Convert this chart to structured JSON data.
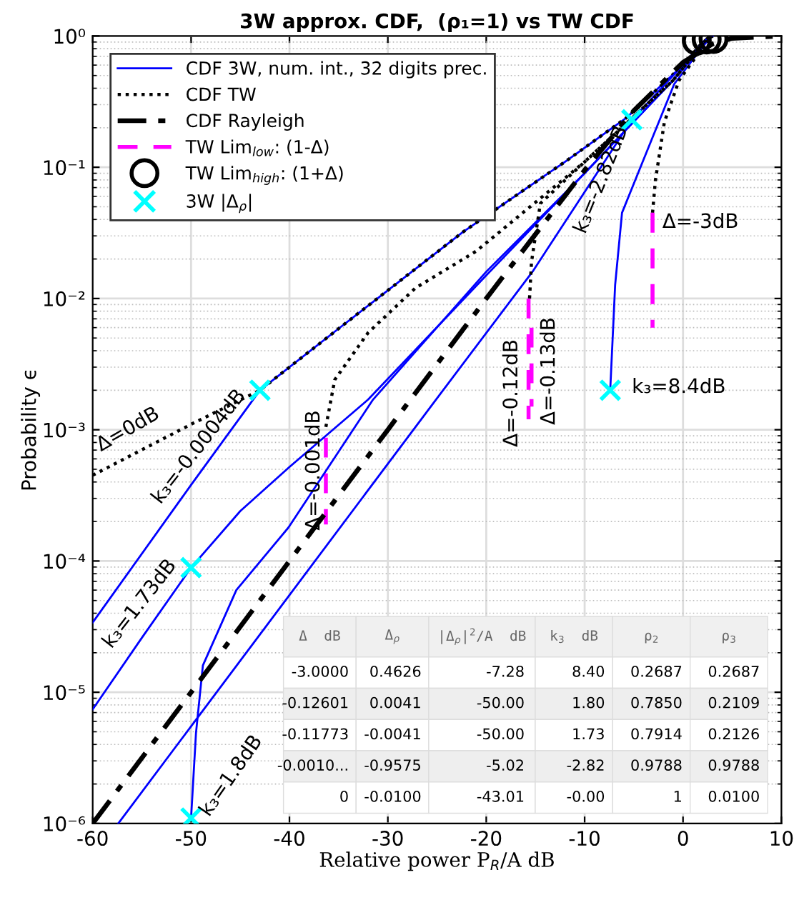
{
  "chart_data": {
    "type": "line",
    "title": "3W approx. CDF,  (ρ₁=1) vs TW CDF",
    "xlabel": "Relative power P$_{R}$/A dB",
    "ylabel": "Probability ϵ",
    "log": "y",
    "xlim": [
      -60,
      10
    ],
    "xticks": [
      -60,
      -50,
      -40,
      -30,
      -20,
      -10,
      0,
      10
    ],
    "ylim": [
      1e-06,
      1
    ],
    "yticks": [
      {
        "value": 1e-06,
        "label": "10⁻⁶"
      },
      {
        "value": 1e-05,
        "label": "10⁻⁵"
      },
      {
        "value": 0.0001,
        "label": "10⁻⁴"
      },
      {
        "value": 0.001,
        "label": "10⁻³"
      },
      {
        "value": 0.01,
        "label": "10⁻²"
      },
      {
        "value": 0.1,
        "label": "10⁻¹"
      },
      {
        "value": 1,
        "label": "10⁰"
      }
    ],
    "grid": true,
    "legend": "top left",
    "series": [
      {
        "name": "CDF 3W, num. int., 32 digits prec.",
        "type": "line",
        "color": "#0000ff",
        "line_style": "solid",
        "marker": "none",
        "x": [
          -60,
          -50,
          -43,
          -35,
          -22.4,
          -12,
          -5.7,
          0,
          2,
          3
        ],
        "values": [
          3.4e-05,
          0.00038,
          0.002,
          0.0059,
          0.032,
          0.11,
          0.24,
          0.6,
          0.9,
          1.0
        ]
      },
      {
        "name": "CDF TW",
        "type": "line",
        "color": "#000000",
        "line_style": "dotted",
        "marker": "none",
        "x": [
          -60,
          -50,
          -43,
          -35,
          -22.4,
          -12,
          -5.7,
          0,
          2,
          3
        ],
        "values": [
          0.00045,
          0.0011,
          0.002,
          0.0059,
          0.032,
          0.11,
          0.24,
          0.6,
          0.9,
          1.0
        ]
      },
      {
        "name": "CDF Rayleigh",
        "type": "line",
        "color": "#000000",
        "line_style": "dashdot",
        "marker": "none",
        "x": [
          -60,
          -50,
          -40,
          -30,
          -20,
          -10,
          -5,
          0,
          3,
          5,
          10
        ],
        "values": [
          1e-06,
          1e-05,
          0.0001,
          0.001,
          0.01,
          0.095,
          0.27,
          0.63,
          0.87,
          0.96,
          1.0
        ]
      },
      {
        "name": "TW Lim$_{low}$: (1-Δ)",
        "type": "line",
        "color": "#ff00ff",
        "line_style": "dashed",
        "marker": "none",
        "x": [
          -36.3,
          -36.3
        ],
        "values": [
          0.00087,
          0.00019
        ]
      },
      {
        "name": "TW Lim$_{high}$: (1+Δ)",
        "type": "scatter",
        "color": "#000000",
        "marker": "circle",
        "x": [
          1.4,
          2.4,
          3.1
        ],
        "values": [
          0.92,
          0.94,
          0.95
        ]
      },
      {
        "name": "3W |Δ$_{ρ}$|",
        "type": "scatter",
        "color": "#00ffff",
        "marker": "cross",
        "x": [
          -43,
          -50,
          -50,
          -5.2,
          -7.4
        ],
        "values": [
          0.002,
          8.9e-05,
          1.1e-06,
          0.23,
          0.002
        ]
      },
      {
        "color": "#0000ff",
        "line_style": "solid",
        "marker": "none",
        "x": [
          -60,
          -55,
          -50,
          -45,
          -40,
          -32,
          -20,
          -10,
          -1,
          2.4,
          3
        ],
        "values": [
          7.4e-06,
          2.6e-05,
          8.9e-05,
          0.00024,
          0.00052,
          0.0017,
          0.015,
          0.09,
          0.46,
          0.95,
          1.0
        ]
      },
      {
        "color": "#0000ff",
        "line_style": "solid",
        "marker": "none",
        "x": [
          -50,
          -49.5,
          -48.8,
          -45.4,
          -40.1,
          -31.5,
          -20,
          -10,
          -1,
          2.4,
          3
        ],
        "values": [
          1.1e-06,
          4.9e-06,
          1.6e-05,
          6e-05,
          0.00018,
          0.0017,
          0.016,
          0.09,
          0.46,
          0.95,
          1.0
        ]
      },
      {
        "color": "#0000ff",
        "line_style": "solid",
        "marker": "none",
        "x": [
          -57.4,
          -50,
          -40,
          -25.1,
          -15.3,
          -5.2,
          0,
          3
        ],
        "values": [
          1e-06,
          5.5e-06,
          5.5e-05,
          0.0017,
          0.016,
          0.23,
          0.6,
          1.0
        ]
      },
      {
        "color": "#0000ff",
        "line_style": "solid",
        "marker": "none",
        "x": [
          -7.4,
          -6.9,
          -6.2,
          -3.3,
          -0.9,
          2,
          2.9
        ],
        "values": [
          0.002,
          0.0127,
          0.045,
          0.155,
          0.43,
          0.83,
          1.0
        ]
      },
      {
        "color": "#000000",
        "line_style": "dotted",
        "marker": "none",
        "x": [
          -36.3,
          -35.4,
          -32,
          -27.2,
          -21,
          -10,
          -1,
          2.4,
          3
        ],
        "values": [
          0.00105,
          0.0024,
          0.0055,
          0.012,
          0.023,
          0.11,
          0.46,
          0.95,
          1.0
        ]
      },
      {
        "color": "#000000",
        "line_style": "dotted",
        "marker": "none",
        "x": [
          -15.6,
          -15.4,
          -14.5,
          -10,
          -1,
          2.4,
          3
        ],
        "values": [
          0.01,
          0.019,
          0.053,
          0.11,
          0.46,
          0.95,
          1.0
        ]
      },
      {
        "color": "#000000",
        "line_style": "dotted",
        "marker": "none",
        "x": [
          -3.1,
          -2.8,
          -1.9,
          -0.4,
          2.4,
          3
        ],
        "values": [
          0.045,
          0.08,
          0.22,
          0.46,
          0.9,
          1.0
        ]
      },
      {
        "color": "#ff00ff",
        "line_style": "dashed",
        "marker": "none",
        "x": [
          -3.1,
          -3.1
        ],
        "values": [
          0.045,
          0.006
        ]
      },
      {
        "color": "#ff00ff",
        "line_style": "dashed",
        "marker": "none",
        "x": [
          -15.7,
          -15.7
        ],
        "values": [
          0.01,
          0.0012
        ]
      },
      {
        "color": "#ff00ff",
        "line_style": "dashed",
        "marker": "none",
        "x": [
          -15.4,
          -15.4
        ],
        "values": [
          0.006,
          0.0015
        ]
      }
    ],
    "annotations": [
      "Δ=0dB",
      "k₃=-0.0004dB",
      "Δ=-0.001dB",
      "k₃=1.73dB",
      "k₃=1.8dB",
      "Δ=-0.12dB",
      "Δ=-0.13dB",
      "k₃=-2.82dB",
      "Δ=-3dB",
      "k₃=8.4dB",
      "Δ  dB",
      "Δ$_{ρ}$",
      "|Δ$_{ρ}$|$^{2}$/A  dB",
      "k$_{3}$  dB",
      "ρ$_{2}$",
      "ρ$_{3}$",
      "-3.0000",
      "0.4626",
      "-7.28",
      "8.40",
      "0.2687",
      "0.2687",
      "-0.12601",
      "0.0041",
      "-50.00",
      "1.80",
      "0.7850",
      "0.2109",
      "-0.11773",
      "-0.0041",
      "-50.00",
      "1.73",
      "0.7914",
      "0.2126",
      "-0.0010...",
      "-0.9575",
      "-5.02",
      "-2.82",
      "0.9788",
      "0.9788",
      "0",
      "-0.0100",
      "-43.01",
      "-0.00",
      "1",
      "0.0100"
    ]
  }
}
